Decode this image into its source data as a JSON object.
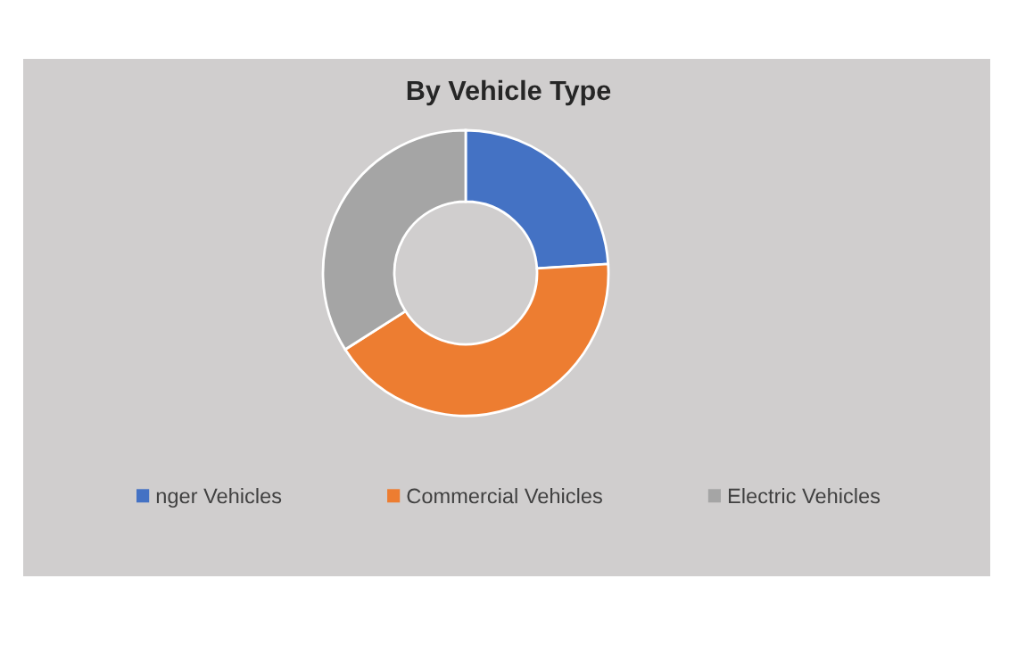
{
  "chart_data": {
    "type": "donut",
    "title": "By Vehicle Type",
    "categories": [
      "nger Vehicles",
      "Commercial Vehicles",
      "Electric Vehicles"
    ],
    "values": [
      24,
      42,
      34
    ],
    "colors": [
      "#4472c4",
      "#ed7d31",
      "#a5a5a5"
    ],
    "legend": "bottom"
  }
}
